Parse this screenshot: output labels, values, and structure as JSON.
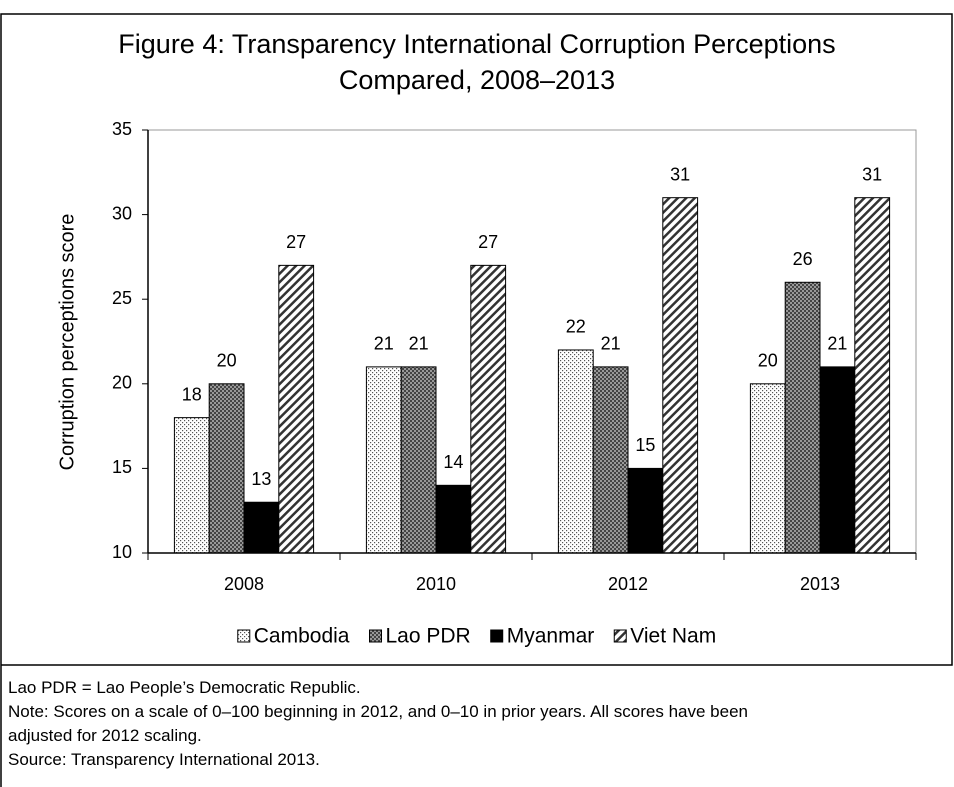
{
  "chart_data": {
    "type": "bar",
    "title": [
      "Figure 4: Transparency International Corruption Perceptions",
      "Compared, 2008–2013"
    ],
    "ylabel": "Corruption perceptions score",
    "categories": [
      "2008",
      "2010",
      "2012",
      "2013"
    ],
    "series": [
      {
        "name": "Cambodia",
        "color": "#ffffff",
        "pattern": "dots",
        "values": [
          18,
          21,
          22,
          20
        ]
      },
      {
        "name": "Lao PDR",
        "color": "#7f7f7f",
        "pattern": "crosshatch",
        "values": [
          20,
          21,
          21,
          26
        ]
      },
      {
        "name": "Myanmar",
        "color": "#000000",
        "pattern": "solid",
        "values": [
          13,
          14,
          15,
          21
        ]
      },
      {
        "name": "Viet Nam",
        "color": "#ffffff",
        "pattern": "stripes",
        "values": [
          27,
          27,
          31,
          31
        ]
      }
    ],
    "ylim": [
      10,
      35
    ],
    "yticks": [
      10,
      15,
      20,
      25,
      30,
      35
    ],
    "grid": false,
    "legend": "bottom",
    "notes": [
      "Lao PDR = Lao People’s Democratic Republic.",
      "Note: Scores on a scale of 0–100 beginning in 2012, and 0–10 in prior years. All scores have been adjusted for 2012 scaling.",
      "Source: Transparency International 2013."
    ]
  }
}
